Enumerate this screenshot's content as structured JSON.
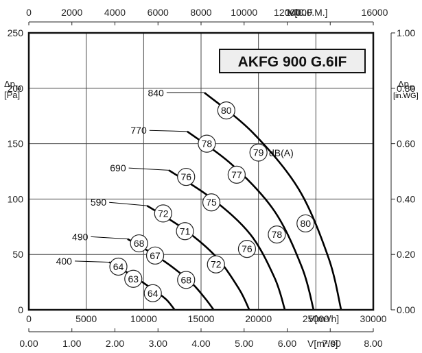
{
  "chart_data": {
    "type": "line",
    "title": "AKFG 900 G.6IF",
    "xlabel": "V[m3/h]",
    "ylabel": "Δpfa [Pa]",
    "xlim": [
      0,
      30000
    ],
    "ylim": [
      0,
      250
    ],
    "grid": true,
    "x_ticks": [
      "0",
      "5000",
      "10000",
      "15000",
      "20000",
      "25000",
      "30000"
    ],
    "y_ticks": [
      "0",
      "50",
      "100",
      "150",
      "200",
      "250"
    ],
    "x_unit_label": "V[m³/h]",
    "left_axis_label": "Δp",
    "left_axis_sub": "fa",
    "left_axis_unit": "[Pa]",
    "top_axis": {
      "label": "V[C.F.M.]",
      "range": [
        0,
        16000
      ],
      "ticks": [
        "0",
        "2000",
        "4000",
        "6000",
        "8000",
        "10000",
        "12000",
        "14000",
        "16000"
      ]
    },
    "bottom_axis2": {
      "label": "V[m³/s]",
      "range": [
        0,
        8
      ],
      "ticks": [
        "0.00",
        "1.00",
        "2.00",
        "3.00",
        "4.00",
        "5.00",
        "6.00",
        "7.00",
        "8.00"
      ]
    },
    "right_axis": {
      "label": "Δp",
      "sub": "fa",
      "unit": "[in.WG]",
      "range": [
        0,
        1
      ],
      "ticks": [
        "0.00",
        "0.20",
        "0.40",
        "0.60",
        "0.80",
        "1.00"
      ]
    },
    "dba_label": "dB(A)",
    "series": [
      {
        "name": "400",
        "label_pos": [
          4600,
          44
        ],
        "points": [
          [
            7000,
            43
          ],
          [
            9000,
            31
          ],
          [
            11000,
            17
          ],
          [
            12000,
            9
          ],
          [
            12700,
            0
          ]
        ],
        "bubbles": [
          {
            "x": 7800,
            "y": 39,
            "v": "64"
          },
          {
            "x": 9100,
            "y": 28,
            "v": "63"
          },
          {
            "x": 10800,
            "y": 15,
            "v": "64"
          }
        ]
      },
      {
        "name": "490",
        "label_pos": [
          6000,
          66
        ],
        "points": [
          [
            8600,
            64
          ],
          [
            11500,
            46
          ],
          [
            14000,
            26
          ],
          [
            15300,
            11
          ],
          [
            16100,
            0
          ]
        ],
        "bubbles": [
          {
            "x": 9600,
            "y": 60,
            "v": "68"
          },
          {
            "x": 11000,
            "y": 49,
            "v": "67"
          },
          {
            "x": 13700,
            "y": 27,
            "v": "68"
          }
        ]
      },
      {
        "name": "590",
        "label_pos": [
          7600,
          97
        ],
        "points": [
          [
            10300,
            94
          ],
          [
            13500,
            73
          ],
          [
            16300,
            48
          ],
          [
            18300,
            19
          ],
          [
            19200,
            0
          ]
        ],
        "bubbles": [
          {
            "x": 11700,
            "y": 87,
            "v": "72"
          },
          {
            "x": 13600,
            "y": 71,
            "v": "71"
          },
          {
            "x": 16300,
            "y": 41,
            "v": "72"
          }
        ]
      },
      {
        "name": "690",
        "label_pos": [
          9300,
          128
        ],
        "points": [
          [
            12200,
            126
          ],
          [
            16000,
            100
          ],
          [
            19300,
            68
          ],
          [
            21400,
            29
          ],
          [
            22300,
            0
          ]
        ],
        "bubbles": [
          {
            "x": 13700,
            "y": 120,
            "v": "76"
          },
          {
            "x": 15900,
            "y": 97,
            "v": "75"
          },
          {
            "x": 19000,
            "y": 55,
            "v": "76"
          }
        ]
      },
      {
        "name": "770",
        "label_pos": [
          11100,
          162
        ],
        "points": [
          [
            13800,
            161
          ],
          [
            17700,
            131
          ],
          [
            21400,
            89
          ],
          [
            23800,
            38
          ],
          [
            24800,
            0
          ]
        ],
        "bubbles": [
          {
            "x": 15500,
            "y": 150,
            "v": "78"
          },
          {
            "x": 18100,
            "y": 122,
            "v": "77"
          },
          {
            "x": 21600,
            "y": 68,
            "v": "78"
          }
        ]
      },
      {
        "name": "840",
        "label_pos": [
          12600,
          196
        ],
        "points": [
          [
            15300,
            196
          ],
          [
            19500,
            160
          ],
          [
            23500,
            109
          ],
          [
            26100,
            47
          ],
          [
            27200,
            0
          ]
        ],
        "bubbles": [
          {
            "x": 17200,
            "y": 180,
            "v": "80"
          },
          {
            "x": 20000,
            "y": 142,
            "v": "79"
          },
          {
            "x": 24100,
            "y": 78,
            "v": "80"
          }
        ]
      }
    ]
  }
}
